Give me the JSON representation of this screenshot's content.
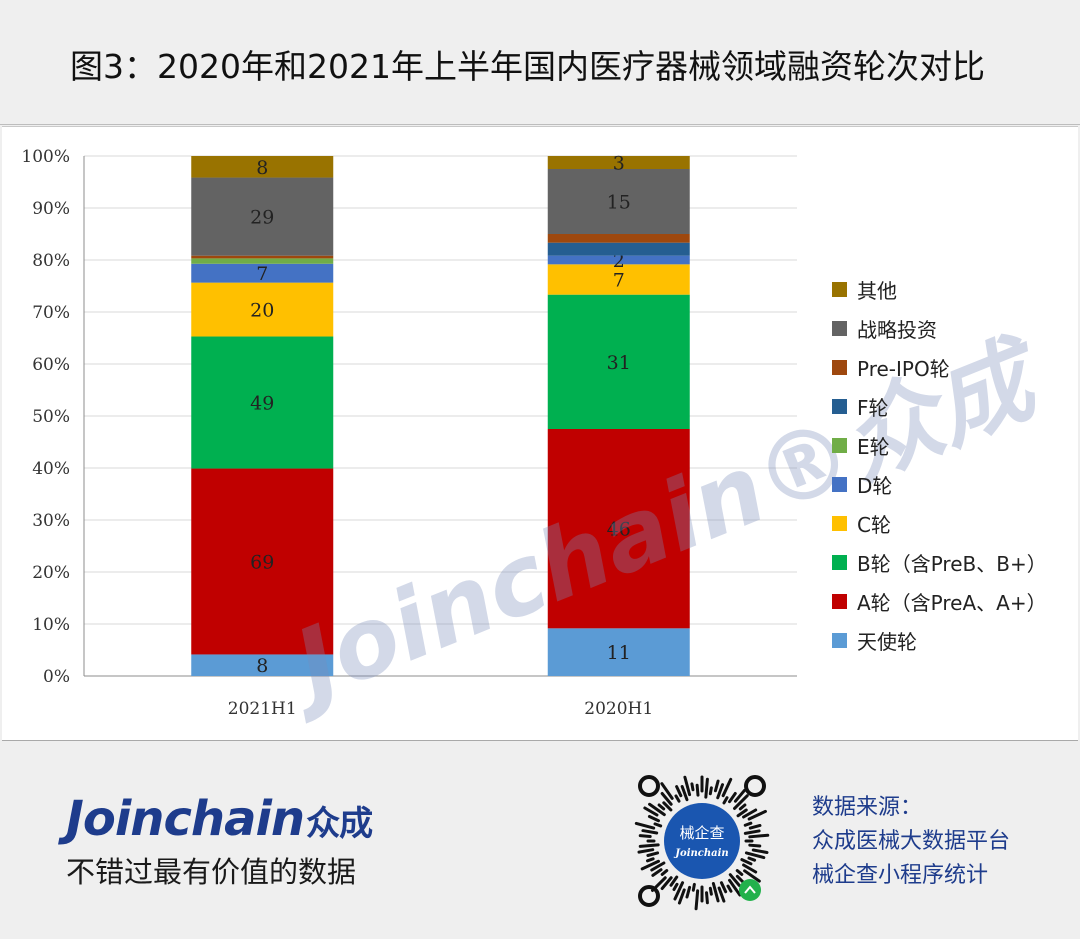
{
  "title": "图3：2020年和2021年上半年国内医疗器械领域融资轮次对比",
  "chart_data": {
    "type": "bar",
    "stacked": true,
    "normalized": true,
    "categories": [
      "2021H1",
      "2020H1"
    ],
    "yaxis": {
      "min": 0,
      "max": 100,
      "ticks": [
        "0%",
        "10%",
        "20%",
        "30%",
        "40%",
        "50%",
        "60%",
        "70%",
        "80%",
        "90%",
        "100%"
      ]
    },
    "grid": true,
    "legend_position": "right",
    "series": [
      {
        "name": "天使轮",
        "color": "#5b9bd5",
        "values": [
          8,
          11
        ]
      },
      {
        "name": "A轮（含PreA、A+）",
        "color": "#c00000",
        "values": [
          69,
          46
        ]
      },
      {
        "name": "B轮（含PreB、B+）",
        "color": "#00b050",
        "values": [
          49,
          31
        ]
      },
      {
        "name": "C轮",
        "color": "#ffc000",
        "values": [
          20,
          7
        ]
      },
      {
        "name": "D轮",
        "color": "#4472c4",
        "values": [
          7,
          2
        ]
      },
      {
        "name": "E轮",
        "color": "#70ad47",
        "values": [
          2,
          0
        ]
      },
      {
        "name": "F轮",
        "color": "#255e91",
        "values": [
          0,
          3
        ]
      },
      {
        "name": "Pre-IPO轮",
        "color": "#9e480e",
        "values": [
          1,
          2
        ]
      },
      {
        "name": "战略投资",
        "color": "#636363",
        "values": [
          29,
          15
        ]
      },
      {
        "name": "其他",
        "color": "#997300",
        "values": [
          8,
          3
        ]
      }
    ],
    "data_labels": [
      [
        "8",
        "69",
        "49",
        "20",
        "7",
        "",
        "",
        "",
        "29",
        "8"
      ],
      [
        "11",
        "46",
        "31",
        "7",
        "2",
        "",
        "",
        "",
        "15",
        "3"
      ]
    ],
    "watermark": "Joinchain®众成"
  },
  "footer": {
    "brand": "Joinchain",
    "brand_cn": "众成",
    "slogan": "不错过最有价值的数据",
    "qr_label": "械企查",
    "qr_sub": "Joinchain",
    "source_lines": [
      "数据来源：",
      "众成医械大数据平台",
      "械企查小程序统计"
    ]
  }
}
